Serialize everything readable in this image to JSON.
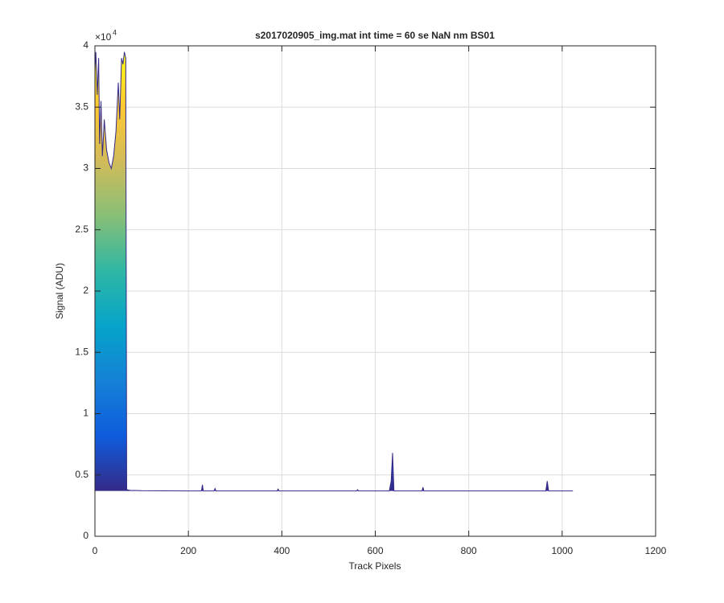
{
  "chart_data": {
    "type": "area",
    "title": "s2017020905_img.mat int time = 60 se  NaN nm BS01",
    "xlabel": "Track Pixels",
    "ylabel": "Signal (ADU)",
    "y_multiplier": {
      "base": "×10",
      "exponent": "4"
    },
    "x": [
      0,
      2,
      5,
      8,
      10,
      13,
      16,
      20,
      25,
      30,
      35,
      40,
      45,
      50,
      53,
      57,
      60,
      63,
      66,
      68,
      75,
      100,
      200,
      228,
      230,
      232,
      255,
      257,
      259,
      390,
      392,
      394,
      560,
      562,
      564,
      630,
      634,
      637,
      640,
      700,
      702,
      704,
      965,
      968,
      971,
      1023
    ],
    "values": [
      38000,
      39500,
      36000,
      39000,
      32000,
      35500,
      31000,
      34000,
      31500,
      30500,
      30000,
      31000,
      33000,
      37000,
      34000,
      39000,
      38500,
      39500,
      39000,
      3800,
      3750,
      3720,
      3700,
      3700,
      4200,
      3700,
      3700,
      3900,
      3700,
      3700,
      3850,
      3700,
      3700,
      3800,
      3700,
      3700,
      4500,
      6800,
      3700,
      3700,
      4000,
      3700,
      3700,
      4500,
      3700,
      3700
    ],
    "colormap": [
      "#352a87",
      "#0f5cdd",
      "#1481d6",
      "#06a4ca",
      "#2eb7a4",
      "#87bf77",
      "#d1bb59",
      "#fec832",
      "#f9fb0e"
    ],
    "xlim": [
      0,
      1200
    ],
    "xticks": [
      0,
      200,
      400,
      600,
      800,
      1000,
      1200
    ],
    "ylim": [
      0,
      40000
    ],
    "yticks": [
      {
        "value": 0,
        "label": "0"
      },
      {
        "value": 5000,
        "label": "0.5"
      },
      {
        "value": 10000,
        "label": "1"
      },
      {
        "value": 15000,
        "label": "1.5"
      },
      {
        "value": 20000,
        "label": "2"
      },
      {
        "value": 25000,
        "label": "2.5"
      },
      {
        "value": 30000,
        "label": "3"
      },
      {
        "value": 35000,
        "label": "3.5"
      },
      {
        "value": 40000,
        "label": "4"
      }
    ],
    "grid": true
  }
}
